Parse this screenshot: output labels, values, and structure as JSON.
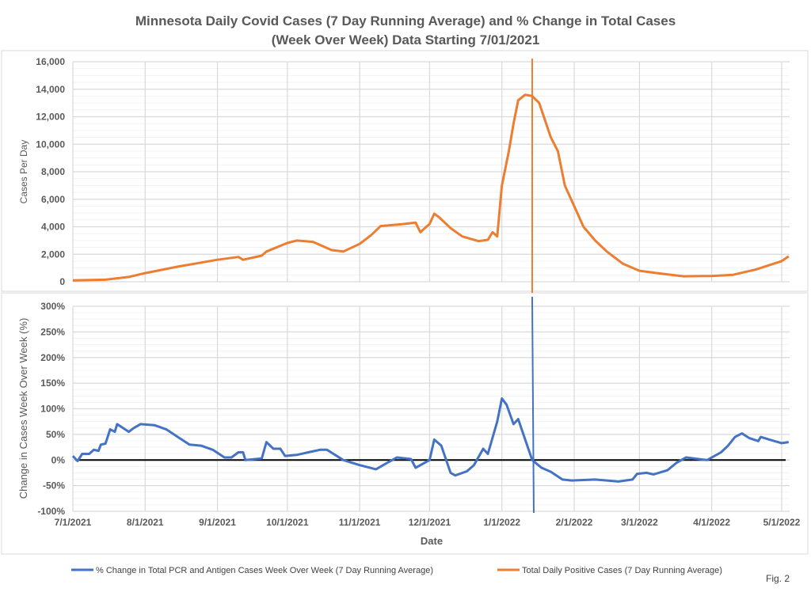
{
  "title_line1": "Minnesota Daily Covid Cases (7 Day Running Average) and % Change in Total Cases",
  "title_line2": "(Week Over Week) Data Starting 7/01/2021",
  "fig_label": "Fig. 2",
  "colors": {
    "cases": "#ED7D31",
    "pct": "#4472C4",
    "zero_line": "#000000",
    "grid": "#D9D9D9"
  },
  "chart_data": [
    {
      "type": "line",
      "ylabel": "Cases Per Day",
      "ylim": [
        0,
        16000
      ],
      "yticks": [
        0,
        2000,
        4000,
        6000,
        8000,
        10000,
        12000,
        14000,
        16000
      ],
      "ytick_labels": [
        "0",
        "2,000",
        "4,000",
        "6,000",
        "8,000",
        "10,000",
        "12,000",
        "14,000",
        "16,000"
      ],
      "grid": true,
      "vertical_marker": "2022-01-14",
      "series": [
        {
          "name": "Total Daily Positive Cases (7 Day Running Average)",
          "color": "#ED7D31",
          "points": [
            [
              "2021-07-01",
              100
            ],
            [
              "2021-07-15",
              150
            ],
            [
              "2021-07-25",
              350
            ],
            [
              "2021-08-01",
              630
            ],
            [
              "2021-08-15",
              1100
            ],
            [
              "2021-09-01",
              1600
            ],
            [
              "2021-09-10",
              1800
            ],
            [
              "2021-09-12",
              1600
            ],
            [
              "2021-09-20",
              1900
            ],
            [
              "2021-09-22",
              2200
            ],
            [
              "2021-10-01",
              2820
            ],
            [
              "2021-10-05",
              3000
            ],
            [
              "2021-10-12",
              2900
            ],
            [
              "2021-10-20",
              2300
            ],
            [
              "2021-10-25",
              2200
            ],
            [
              "2021-11-01",
              2750
            ],
            [
              "2021-11-06",
              3400
            ],
            [
              "2021-11-10",
              4050
            ],
            [
              "2021-11-20",
              4200
            ],
            [
              "2021-11-25",
              4300
            ],
            [
              "2021-11-27",
              3600
            ],
            [
              "2021-12-01",
              4200
            ],
            [
              "2021-12-03",
              4950
            ],
            [
              "2021-12-05",
              4700
            ],
            [
              "2021-12-10",
              3900
            ],
            [
              "2021-12-15",
              3300
            ],
            [
              "2021-12-22",
              2950
            ],
            [
              "2021-12-26",
              3050
            ],
            [
              "2021-12-28",
              3600
            ],
            [
              "2021-12-30",
              3300
            ],
            [
              "2022-01-01",
              7000
            ],
            [
              "2022-01-04",
              9500
            ],
            [
              "2022-01-06",
              11500
            ],
            [
              "2022-01-08",
              13200
            ],
            [
              "2022-01-11",
              13600
            ],
            [
              "2022-01-14",
              13500
            ],
            [
              "2022-01-17",
              13000
            ],
            [
              "2022-01-22",
              10500
            ],
            [
              "2022-01-25",
              9500
            ],
            [
              "2022-01-28",
              7000
            ],
            [
              "2022-02-01",
              5500
            ],
            [
              "2022-02-05",
              4000
            ],
            [
              "2022-02-10",
              3000
            ],
            [
              "2022-02-15",
              2200
            ],
            [
              "2022-02-22",
              1300
            ],
            [
              "2022-03-01",
              800
            ],
            [
              "2022-03-10",
              600
            ],
            [
              "2022-03-20",
              400
            ],
            [
              "2022-04-01",
              420
            ],
            [
              "2022-04-10",
              500
            ],
            [
              "2022-04-20",
              900
            ],
            [
              "2022-05-01",
              1500
            ],
            [
              "2022-05-04",
              1850
            ]
          ]
        }
      ]
    },
    {
      "type": "line",
      "xlabel": "Date",
      "ylabel": "Change in Cases Week Over Week (%)",
      "ylim": [
        -100,
        300
      ],
      "yticks": [
        -100,
        -50,
        0,
        50,
        100,
        150,
        200,
        250,
        300
      ],
      "ytick_labels": [
        "-100%",
        "-50%",
        "0%",
        "50%",
        "100%",
        "150%",
        "200%",
        "250%",
        "300%"
      ],
      "xticks": [
        "2021-07-01",
        "2021-08-01",
        "2021-09-01",
        "2021-10-01",
        "2021-11-01",
        "2021-12-01",
        "2022-01-01",
        "2022-02-01",
        "2022-03-01",
        "2022-04-01",
        "2022-05-01"
      ],
      "xtick_labels": [
        "7/1/2021",
        "8/1/2021",
        "9/1/2021",
        "10/1/2021",
        "11/1/2021",
        "12/1/2021",
        "1/1/2022",
        "2/1/2022",
        "3/1/2022",
        "4/1/2022",
        "5/1/2022"
      ],
      "grid": true,
      "vertical_marker": "2022-01-14",
      "legend": "bottom",
      "series": [
        {
          "name": "% Change in Total PCR and Antigen Cases Week Over Week (7 Day Running Average)",
          "color": "#4472C4",
          "points": [
            [
              "2021-07-01",
              8
            ],
            [
              "2021-07-03",
              -2
            ],
            [
              "2021-07-05",
              12
            ],
            [
              "2021-07-08",
              12
            ],
            [
              "2021-07-10",
              20
            ],
            [
              "2021-07-12",
              18
            ],
            [
              "2021-07-13",
              30
            ],
            [
              "2021-07-15",
              32
            ],
            [
              "2021-07-17",
              60
            ],
            [
              "2021-07-19",
              55
            ],
            [
              "2021-07-20",
              70
            ],
            [
              "2021-07-25",
              55
            ],
            [
              "2021-07-27",
              62
            ],
            [
              "2021-07-30",
              70
            ],
            [
              "2021-08-05",
              68
            ],
            [
              "2021-08-10",
              60
            ],
            [
              "2021-08-15",
              45
            ],
            [
              "2021-08-20",
              30
            ],
            [
              "2021-08-25",
              28
            ],
            [
              "2021-08-30",
              20
            ],
            [
              "2021-09-04",
              5
            ],
            [
              "2021-09-07",
              5
            ],
            [
              "2021-09-10",
              15
            ],
            [
              "2021-09-12",
              15
            ],
            [
              "2021-09-13",
              0
            ],
            [
              "2021-09-20",
              3
            ],
            [
              "2021-09-22",
              35
            ],
            [
              "2021-09-25",
              22
            ],
            [
              "2021-09-28",
              22
            ],
            [
              "2021-09-30",
              8
            ],
            [
              "2021-10-05",
              10
            ],
            [
              "2021-10-10",
              15
            ],
            [
              "2021-10-15",
              20
            ],
            [
              "2021-10-18",
              20
            ],
            [
              "2021-10-25",
              0
            ],
            [
              "2021-11-01",
              -10
            ],
            [
              "2021-11-08",
              -18
            ],
            [
              "2021-11-13",
              -8
            ],
            [
              "2021-11-17",
              5
            ],
            [
              "2021-11-20",
              20
            ],
            [
              "2021-11-25",
              35
            ],
            [
              "2021-11-30",
              18
            ],
            [
              "2021-12-04",
              5
            ],
            [
              "2021-12-10",
              3
            ],
            [
              "2021-12-14",
              -15
            ],
            [
              "2021-12-19",
              -5
            ],
            [
              "2021-12-22",
              0
            ],
            [
              "2021-12-25",
              -15
            ],
            [
              "2021-12-27",
              0
            ],
            [
              "2021-12-30",
              0
            ],
            [
              "2021-12-03",
              40
            ]
          ]
        }
      ]
    }
  ],
  "legend": {
    "pct": "% Change in Total PCR and Antigen Cases Week Over Week (7 Day Running Average)",
    "cases": "Total Daily Positive Cases (7 Day Running Average)"
  }
}
